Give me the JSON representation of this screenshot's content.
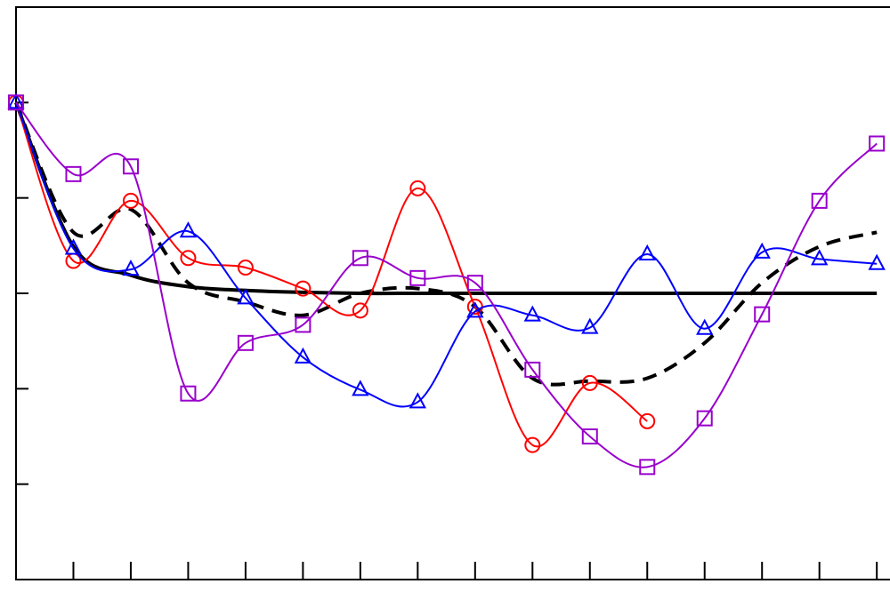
{
  "chart_data": {
    "type": "line",
    "x": [
      0,
      1,
      2,
      3,
      4,
      5,
      6,
      7,
      8,
      9,
      10,
      11,
      12,
      13,
      14,
      15
    ],
    "xlim": [
      0,
      15.23
    ],
    "xticks": [
      1,
      2,
      3,
      4,
      5,
      6,
      7,
      8,
      9,
      10,
      11,
      12,
      13,
      14,
      15
    ],
    "ylim": [
      -3,
      3
    ],
    "yticks": [
      -2,
      -1,
      0,
      1,
      2
    ],
    "series": [
      {
        "color": "#000000",
        "dash": false,
        "width": 4,
        "marker": "none",
        "values": [
          2,
          0.49,
          0.19,
          0.07,
          0.03,
          0.01,
          0,
          0,
          0,
          0,
          0,
          0,
          0,
          0,
          0,
          0
        ]
      },
      {
        "color": "#000000",
        "dash": true,
        "width": 4,
        "marker": "none",
        "values": [
          2,
          0.64,
          0.88,
          0.11,
          -0.09,
          -0.23,
          0,
          0.05,
          -0.14,
          -0.89,
          -0.92,
          -0.89,
          -0.52,
          0.11,
          0.49,
          0.64
        ]
      },
      {
        "color": "#ff0000",
        "dash": false,
        "width": 2,
        "marker": "circle",
        "values": [
          2,
          0.34,
          0.97,
          0.37,
          0.27,
          0.05,
          -0.18,
          1.1,
          -0.14,
          -1.59,
          -0.94,
          -1.34,
          null,
          null,
          null,
          null
        ]
      },
      {
        "color": "#0000ff",
        "dash": false,
        "width": 2,
        "marker": "triangle",
        "values": [
          2,
          0.47,
          0.25,
          0.65,
          -0.05,
          -0.67,
          -1.01,
          -1.14,
          -0.19,
          -0.23,
          -0.36,
          0.41,
          -0.37,
          0.43,
          0.36,
          0.31
        ]
      },
      {
        "color": "#9900cc",
        "dash": false,
        "width": 2,
        "marker": "square",
        "values": [
          2,
          1.25,
          1.33,
          -1.05,
          -0.52,
          -0.33,
          0.37,
          0.16,
          0.11,
          -0.8,
          -1.5,
          -1.82,
          -1.31,
          -0.22,
          0.97,
          1.57
        ]
      }
    ]
  }
}
